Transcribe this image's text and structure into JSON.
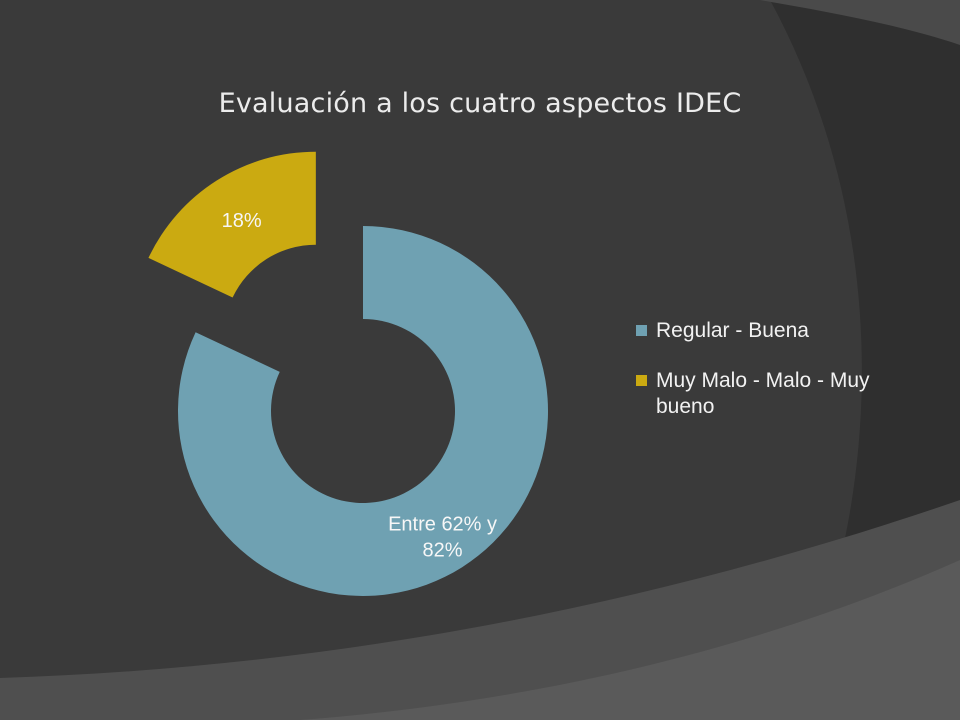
{
  "chart_data": {
    "type": "pie",
    "variant": "doughnut-exploded",
    "title": "Evaluación a los cuatro aspectos IDEC",
    "slices": [
      {
        "name": "Regular - Buena",
        "value": 82,
        "label": "Entre 62% y 82%",
        "color": "#6fa1b2",
        "exploded": false
      },
      {
        "name": "Muy Malo - Malo - Muy bueno",
        "value": 18,
        "label": "18%",
        "color": "#cbaa11",
        "exploded": true
      }
    ],
    "legend_position": "right"
  },
  "colors": {
    "background": "#3a3a3a",
    "decor_dark": "#2f2f2f",
    "decor_light": "#555555",
    "text": "#f2f2f2"
  }
}
